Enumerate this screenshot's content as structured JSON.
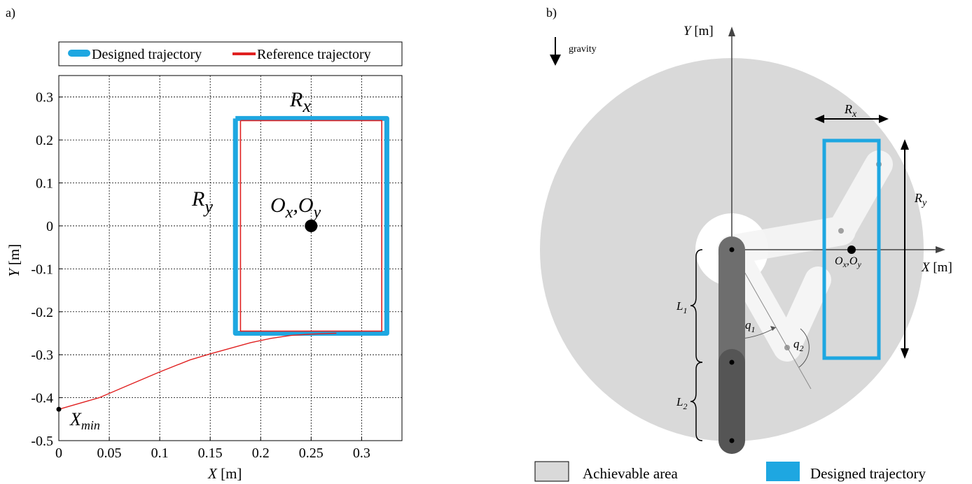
{
  "panel_a": {
    "label": "a)",
    "legend": {
      "designed": "Designed trajectory",
      "reference": "Reference trajectory"
    },
    "xlabel_var": "X",
    "xlabel_unit": " [m]",
    "ylabel_var": "Y",
    "ylabel_unit": " [m]",
    "annotations": {
      "rx": "R",
      "rx_sub": "x",
      "ry": "R",
      "ry_sub": "y",
      "o": "O",
      "o_sub1": "x",
      "o_sep": ",",
      "o2": "O",
      "o_sub2": "y",
      "xmin": "X",
      "xmin_sub": "min"
    },
    "colors": {
      "designed": "#1ea7e1",
      "reference": "#e02020"
    }
  },
  "chart_data": {
    "type": "line",
    "xlim": [
      0,
      0.34
    ],
    "ylim": [
      -0.5,
      0.35
    ],
    "xticks": [
      0,
      0.05,
      0.1,
      0.15,
      0.2,
      0.25,
      0.3
    ],
    "xtick_labels": [
      "0",
      "0.05",
      "0.1",
      "0.15",
      "0.2",
      "0.25",
      "0.3"
    ],
    "yticks": [
      0.3,
      0.2,
      0.1,
      0,
      -0.1,
      -0.2,
      -0.3,
      -0.4,
      -0.5
    ],
    "ytick_labels": [
      "0.3",
      "0.2",
      "0.1",
      "0",
      "-0.1",
      "-0.2",
      "-0.3",
      "-0.4",
      "-0.5"
    ],
    "grid": true,
    "legend_position": "top",
    "series": [
      {
        "name": "Designed trajectory",
        "x": [
          0.175,
          0.325,
          0.325,
          0.175,
          0.175
        ],
        "y": [
          0.25,
          0.25,
          -0.25,
          -0.25,
          0.25
        ]
      },
      {
        "name": "Reference trajectory",
        "x": [
          0,
          0.04,
          0.07,
          0.1,
          0.13,
          0.15,
          0.17,
          0.19,
          0.21,
          0.23,
          0.25,
          0.275
        ],
        "y": [
          -0.427,
          -0.4,
          -0.37,
          -0.34,
          -0.312,
          -0.298,
          -0.285,
          -0.272,
          -0.262,
          -0.255,
          -0.252,
          -0.25
        ]
      },
      {
        "name": "Reference trajectory",
        "x": [
          0.18,
          0.32,
          0.32,
          0.18,
          0.18
        ],
        "y": [
          0.245,
          0.245,
          -0.245,
          -0.245,
          0.245
        ]
      }
    ],
    "center_point": {
      "x": 0.25,
      "y": 0
    },
    "start_point": {
      "x": 0,
      "y": -0.427
    }
  },
  "panel_b": {
    "label": "b)",
    "gravity": "gravity",
    "y_axis_var": "Y",
    "y_axis_unit": " [m]",
    "x_axis_var": "X",
    "x_axis_unit": " [m]",
    "rx": "R",
    "rx_sub": "x",
    "ry": "R",
    "ry_sub": "y",
    "o": "O",
    "o_sub1": "x",
    "o_sep": ",",
    "o2": "O",
    "o_sub2": "y",
    "l1": "L",
    "l1_sub": "1",
    "l2": "L",
    "l2_sub": "2",
    "q1": "q",
    "q1_sub": "1",
    "q2": "q",
    "q2_sub": "2",
    "legend": {
      "achievable": "Achievable area",
      "designed": "Designed trajectory"
    },
    "colors": {
      "area": "#d9d9d9",
      "designed": "#1ea7e1",
      "link_dark": "#555555",
      "link_mid": "#777777"
    }
  }
}
